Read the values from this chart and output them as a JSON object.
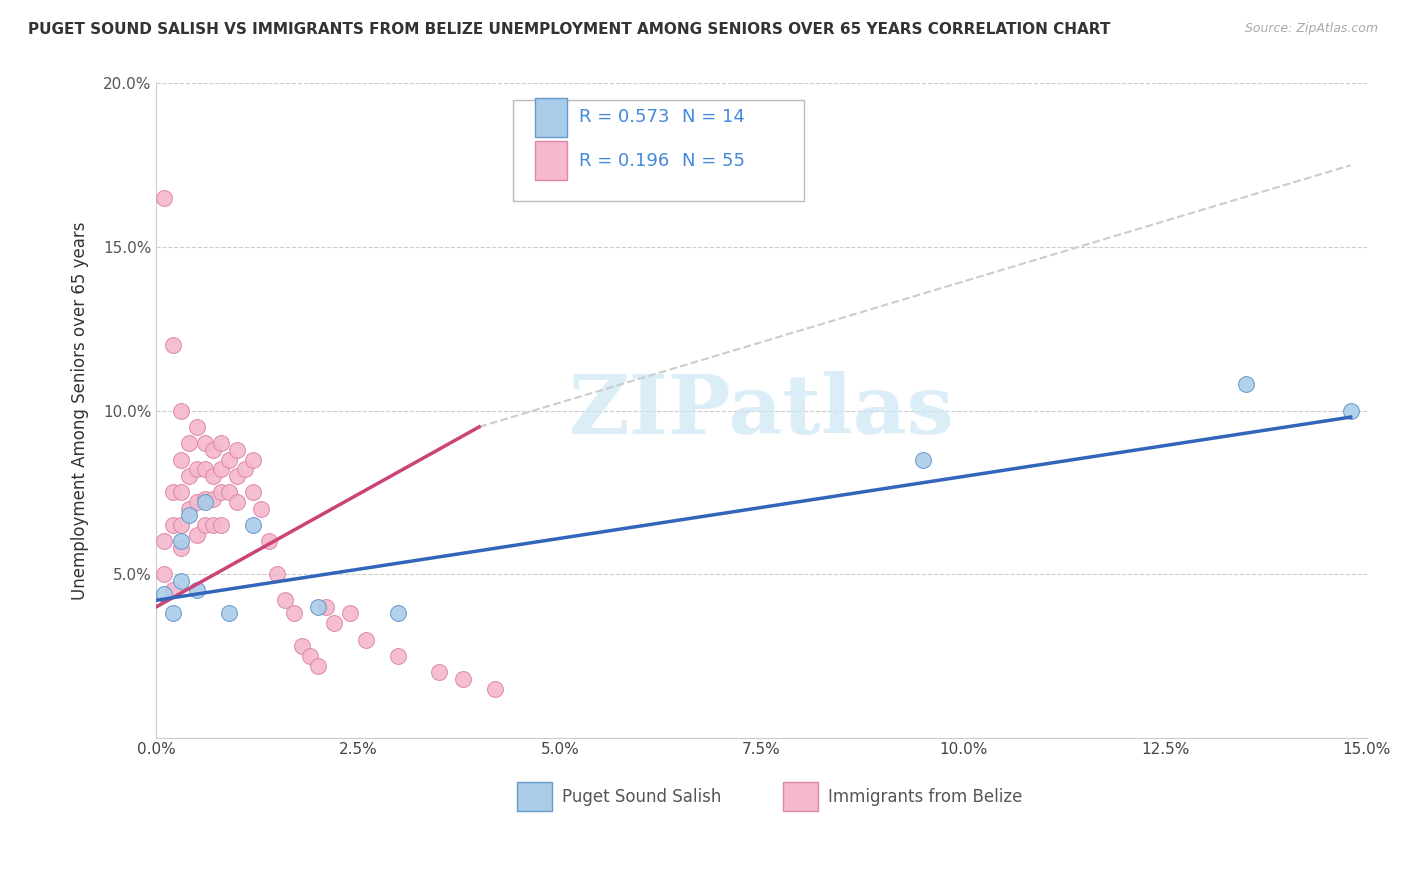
{
  "title": "PUGET SOUND SALISH VS IMMIGRANTS FROM BELIZE UNEMPLOYMENT AMONG SENIORS OVER 65 YEARS CORRELATION CHART",
  "source": "Source: ZipAtlas.com",
  "ylabel": "Unemployment Among Seniors over 65 years",
  "xlim": [
    0,
    0.15
  ],
  "ylim": [
    0,
    0.2
  ],
  "xticks": [
    0.0,
    0.025,
    0.05,
    0.075,
    0.1,
    0.125,
    0.15
  ],
  "xticklabels": [
    "0.0%",
    "2.5%",
    "5.0%",
    "7.5%",
    "10.0%",
    "12.5%",
    "15.0%"
  ],
  "yticks": [
    0.0,
    0.05,
    0.1,
    0.15,
    0.2
  ],
  "yticklabels": [
    "",
    "5.0%",
    "10.0%",
    "15.0%",
    "20.0%"
  ],
  "series1_name": "Puget Sound Salish",
  "series1_color": "#aacce8",
  "series1_edge": "#6699cc",
  "series1_line_color": "#3366bb",
  "series1_R": 0.573,
  "series1_N": 14,
  "series2_name": "Immigrants from Belize",
  "series2_color": "#f5b8cc",
  "series2_edge": "#dd88aa",
  "series2_line_color": "#cc4477",
  "series2_R": 0.196,
  "series2_N": 55,
  "legend_color": "#4488dd",
  "watermark_text": "ZIPatlas",
  "watermark_color": "#cce8f5",
  "background_color": "#ffffff",
  "grid_color": "#cccccc",
  "series1_x": [
    0.001,
    0.002,
    0.003,
    0.003,
    0.004,
    0.005,
    0.006,
    0.009,
    0.012,
    0.02,
    0.03,
    0.095,
    0.135,
    0.148
  ],
  "series1_y": [
    0.044,
    0.038,
    0.06,
    0.048,
    0.068,
    0.045,
    0.072,
    0.038,
    0.065,
    0.04,
    0.038,
    0.085,
    0.108,
    0.1
  ],
  "series2_x": [
    0.001,
    0.001,
    0.001,
    0.002,
    0.002,
    0.002,
    0.002,
    0.003,
    0.003,
    0.003,
    0.003,
    0.003,
    0.004,
    0.004,
    0.004,
    0.005,
    0.005,
    0.005,
    0.005,
    0.006,
    0.006,
    0.006,
    0.006,
    0.007,
    0.007,
    0.007,
    0.007,
    0.008,
    0.008,
    0.008,
    0.008,
    0.009,
    0.009,
    0.01,
    0.01,
    0.01,
    0.011,
    0.012,
    0.012,
    0.013,
    0.014,
    0.015,
    0.016,
    0.017,
    0.018,
    0.019,
    0.02,
    0.021,
    0.022,
    0.024,
    0.026,
    0.03,
    0.035,
    0.038,
    0.042
  ],
  "series2_y": [
    0.165,
    0.06,
    0.05,
    0.12,
    0.075,
    0.065,
    0.045,
    0.1,
    0.085,
    0.075,
    0.065,
    0.058,
    0.09,
    0.08,
    0.07,
    0.095,
    0.082,
    0.072,
    0.062,
    0.09,
    0.082,
    0.073,
    0.065,
    0.088,
    0.08,
    0.073,
    0.065,
    0.09,
    0.082,
    0.075,
    0.065,
    0.085,
    0.075,
    0.088,
    0.08,
    0.072,
    0.082,
    0.085,
    0.075,
    0.07,
    0.06,
    0.05,
    0.042,
    0.038,
    0.028,
    0.025,
    0.022,
    0.04,
    0.035,
    0.038,
    0.03,
    0.025,
    0.02,
    0.018,
    0.015
  ],
  "pink_line_x": [
    0.0,
    0.04
  ],
  "pink_line_y": [
    0.04,
    0.095
  ],
  "dash_line_x": [
    0.04,
    0.148
  ],
  "dash_line_y": [
    0.095,
    0.175
  ],
  "blue_line_x": [
    0.0,
    0.148
  ],
  "blue_line_y": [
    0.042,
    0.098
  ]
}
